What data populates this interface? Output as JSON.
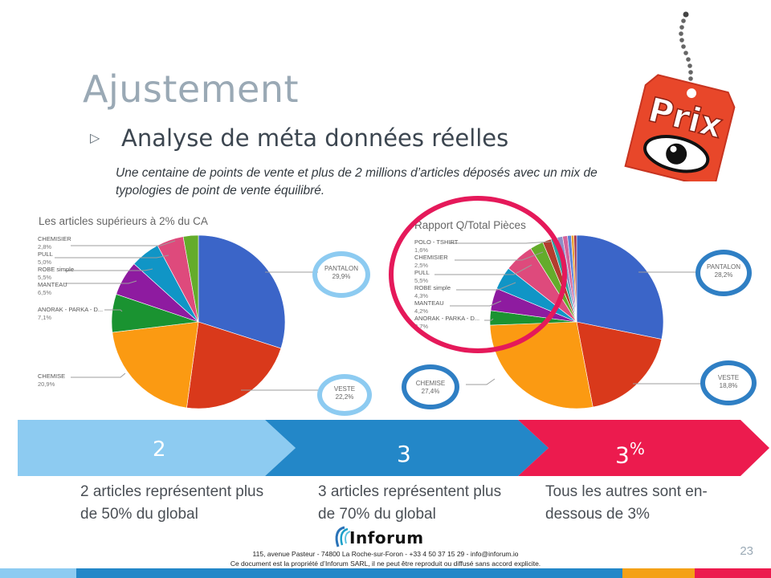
{
  "slide": {
    "title": "Ajustement",
    "subtitle": "Analyse de méta données réelles",
    "bullet_icon": "triangle-bullet-icon",
    "description": "Une centaine de points de vente et plus de 2 millions d’articles déposés avec un mix de typologies de point de vente équilibré.",
    "price_tag": {
      "icon": "price-tag-eye-icon",
      "text": "Prix",
      "color": "#e8472a"
    },
    "page_number": "23"
  },
  "chart_data": [
    {
      "type": "pie",
      "title": "Les articles supérieurs à 2% du CA",
      "slices": [
        {
          "label": "PANTALON",
          "value": 29.9,
          "pct": "29,9%",
          "color": "#3b65c8"
        },
        {
          "label": "VESTE",
          "value": 22.2,
          "pct": "22,2%",
          "color": "#d9391b"
        },
        {
          "label": "CHEMISE",
          "value": 20.9,
          "pct": "20,9%",
          "color": "#fb9a12"
        },
        {
          "label": "ANORAK - PARKA - D...",
          "value": 7.1,
          "pct": "7,1%",
          "color": "#1a9331"
        },
        {
          "label": "MANTEAU",
          "value": 6.5,
          "pct": "6,5%",
          "color": "#8e1ba0"
        },
        {
          "label": "ROBE simple",
          "value": 5.5,
          "pct": "5,5%",
          "color": "#1095c6"
        },
        {
          "label": "PULL",
          "value": 5.0,
          "pct": "5,0%",
          "color": "#de4a7c"
        },
        {
          "label": "CHEMISIER",
          "value": 2.8,
          "pct": "2,8%",
          "color": "#64ac2b"
        }
      ]
    },
    {
      "type": "pie",
      "title": "Rapport Q/Total Pièces",
      "slices": [
        {
          "label": "PANTALON",
          "value": 28.2,
          "pct": "28,2%",
          "color": "#3b65c8"
        },
        {
          "label": "VESTE",
          "value": 18.8,
          "pct": "18,8%",
          "color": "#d9391b"
        },
        {
          "label": "CHEMISE",
          "value": 27.4,
          "pct": "27,4%",
          "color": "#fb9a12"
        },
        {
          "label": "ANORAK - PARKA - D...",
          "value": 2.7,
          "pct": "2,7%",
          "color": "#1a9331"
        },
        {
          "label": "MANTEAU",
          "value": 4.2,
          "pct": "4,2%",
          "color": "#8e1ba0"
        },
        {
          "label": "ROBE simple",
          "value": 4.3,
          "pct": "4,3%",
          "color": "#1095c6"
        },
        {
          "label": "PULL",
          "value": 5.5,
          "pct": "5,5%",
          "color": "#de4a7c"
        },
        {
          "label": "CHEMISIER",
          "value": 2.5,
          "pct": "2,5%",
          "color": "#64ac2b"
        },
        {
          "label": "POLO - TSHIRT",
          "value": 1.6,
          "pct": "1,6%",
          "color": "#b33d2e"
        },
        {
          "label": "",
          "value": 1.2,
          "color": "#2aa5a0"
        },
        {
          "label": "",
          "value": 1.0,
          "color": "#8b8fc6"
        },
        {
          "label": "",
          "value": 0.9,
          "color": "#d4639b"
        },
        {
          "label": "",
          "value": 0.7,
          "color": "#5a83d8"
        },
        {
          "label": "",
          "value": 0.5,
          "color": "#e8a12f"
        },
        {
          "label": "",
          "value": 0.5,
          "color": "#a3344d"
        }
      ]
    }
  ],
  "stages": [
    {
      "value": "2",
      "caption": "2 articles représentent plus de 50% du global",
      "color": "#8dcbf1"
    },
    {
      "value": "3",
      "caption": "3 articles représentent plus de 70% du global",
      "color": "#2387c8"
    },
    {
      "value": "3",
      "suffix": "%",
      "caption": "Tous les autres sont en-dessous de 3%",
      "color": "#ec1b4e"
    }
  ],
  "footer": {
    "logo_text": "Inforum",
    "address": "115, avenue Pasteur - 74800 La Roche-sur-Foron - +33 4 50 37 15 29 - info@inforum.io",
    "notice": "Ce document est la propriété d’Inforum SARL, il ne peut être reproduit ou diffusé sans accord explicite."
  },
  "colors": {
    "title": "#9aa9b5",
    "callout_light": "#8dcbf1",
    "callout_dark": "#2f7fc4",
    "highlight_ring": "#e5195a"
  }
}
